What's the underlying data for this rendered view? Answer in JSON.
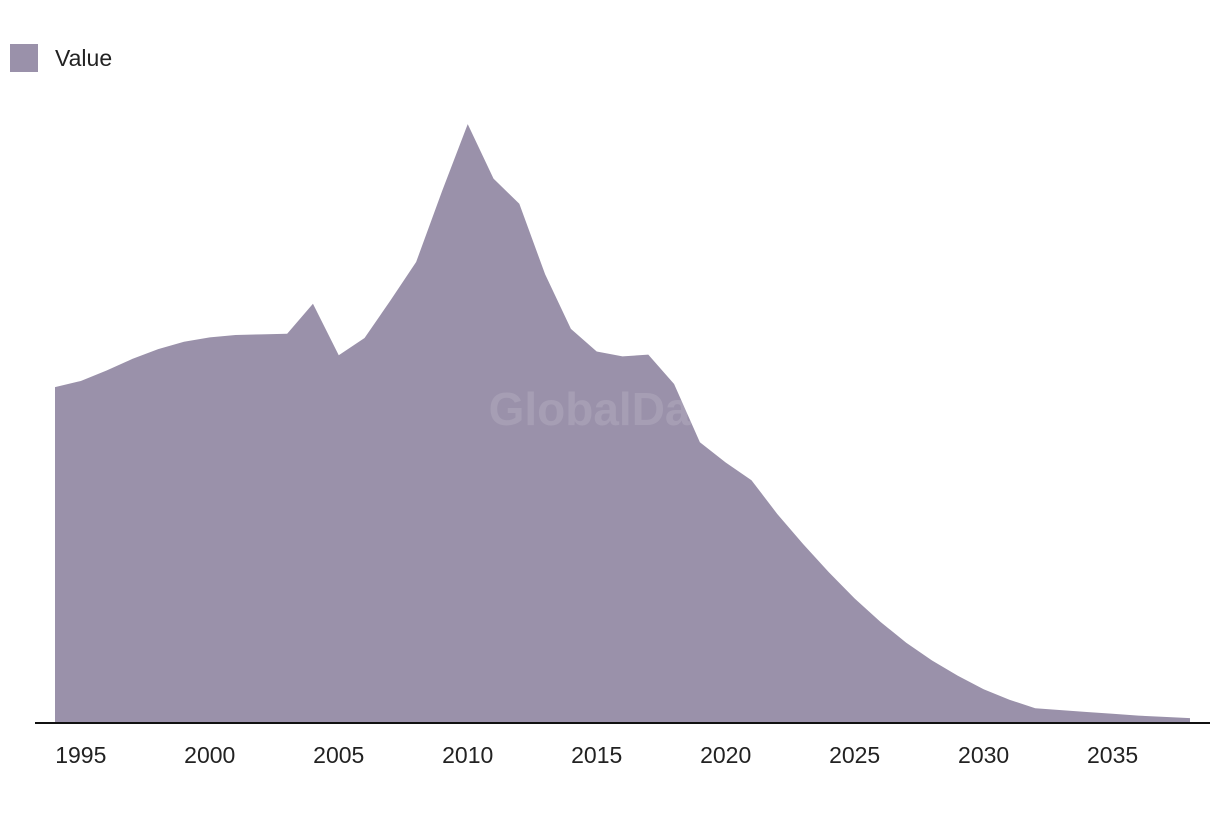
{
  "colors": {
    "series": "#9a91aa",
    "axis": "#111111",
    "text": "#222222"
  },
  "watermark": "GlobalData",
  "legend": {
    "label": "Value"
  },
  "chart_data": {
    "type": "area",
    "title": "",
    "xlabel": "",
    "ylabel": "",
    "legend_position": "top-left",
    "grid": false,
    "x_ticks": [
      1995,
      2000,
      2005,
      2010,
      2015,
      2020,
      2025,
      2030,
      2035
    ],
    "x_range": [
      1994,
      2038
    ],
    "y_range": [
      0,
      100
    ],
    "series": [
      {
        "name": "Value",
        "x": [
          1994,
          1995,
          1996,
          1997,
          1998,
          1999,
          2000,
          2001,
          2002,
          2003,
          2004,
          2005,
          2006,
          2007,
          2008,
          2009,
          2010,
          2011,
          2012,
          2013,
          2014,
          2015,
          2016,
          2017,
          2018,
          2019,
          2020,
          2021,
          2022,
          2023,
          2024,
          2025,
          2026,
          2027,
          2028,
          2029,
          2030,
          2031,
          2032,
          2033,
          2034,
          2035,
          2036,
          2037,
          2038
        ],
        "values": [
          54.8,
          55.8,
          57.5,
          59.4,
          61.0,
          62.2,
          62.9,
          63.3,
          63.4,
          63.5,
          68.4,
          60.0,
          62.8,
          68.9,
          75.2,
          86.7,
          97.7,
          88.8,
          84.7,
          73.2,
          64.3,
          60.6,
          59.8,
          60.1,
          55.3,
          45.8,
          42.5,
          39.6,
          34.1,
          29.2,
          24.6,
          20.3,
          16.5,
          13.1,
          10.2,
          7.7,
          5.5,
          3.8,
          2.4,
          2.1,
          1.8,
          1.5,
          1.2,
          1.0,
          0.8
        ]
      }
    ]
  }
}
